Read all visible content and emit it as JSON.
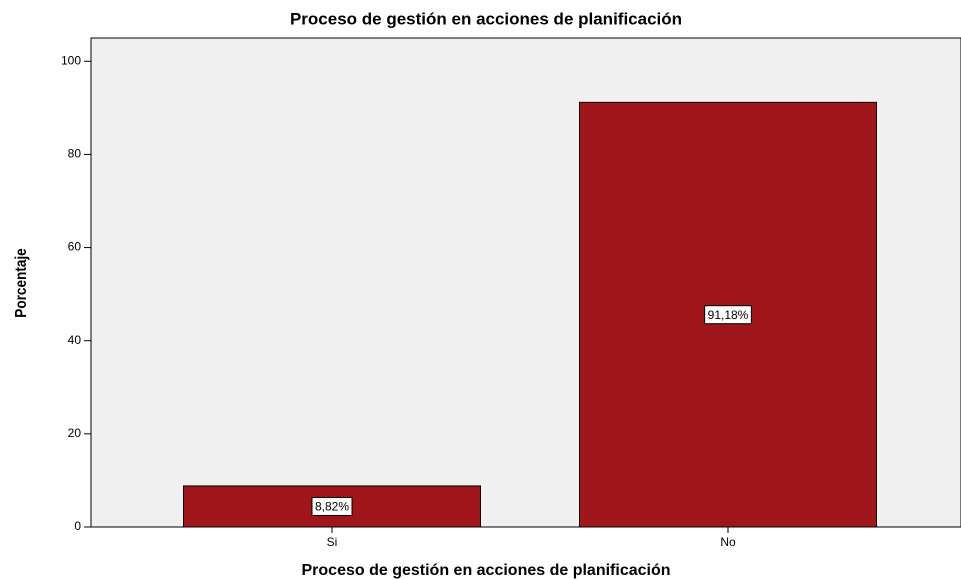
{
  "chart_data": {
    "type": "bar",
    "title": "Proceso de gestión en acciones de planificación",
    "x_label": "Proceso de gestión en acciones de planificación",
    "y_label": "Porcentaje",
    "categories": [
      "Si",
      "No"
    ],
    "values": [
      8.82,
      91.18
    ],
    "value_labels": [
      "8,82%",
      "91,18%"
    ],
    "color": "#a0161b",
    "ylim": [
      0,
      105
    ],
    "yticks": [
      0,
      20,
      40,
      60,
      80,
      100
    ],
    "grid": false
  }
}
